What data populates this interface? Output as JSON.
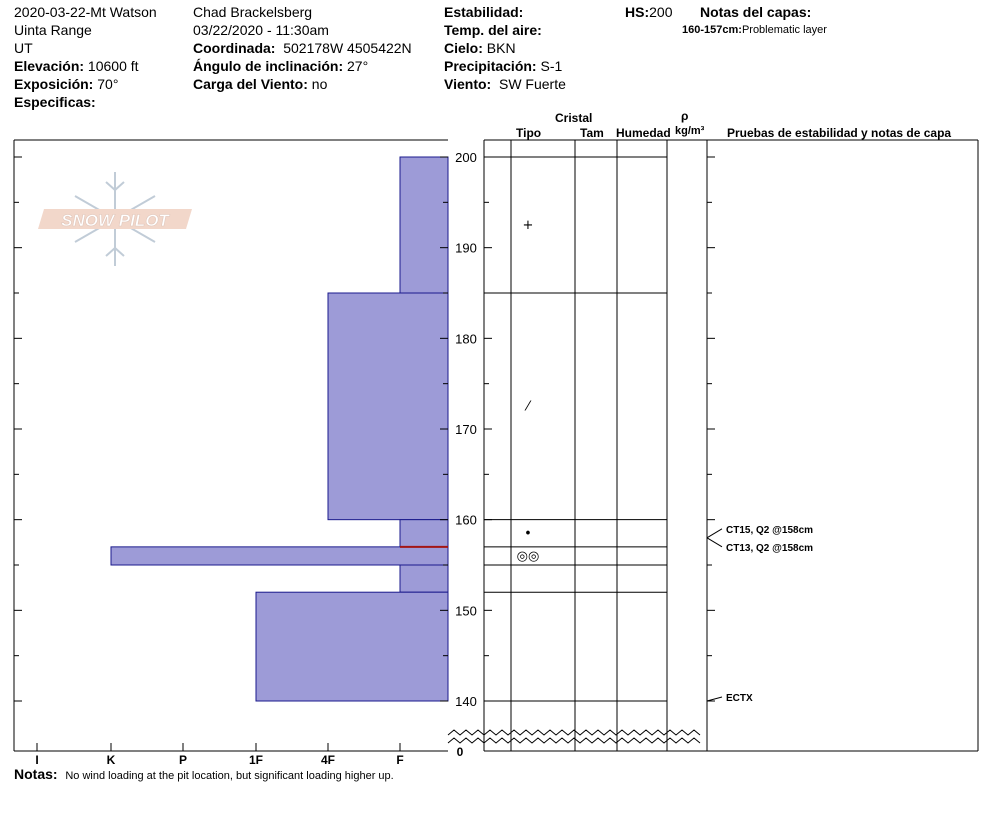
{
  "header": {
    "col1": {
      "pit_name": "2020-03-22-Mt Watson",
      "range": "Uinta Range",
      "state": "UT",
      "elevation_label": "Elevación:",
      "elevation_value": "10600 ft",
      "exposure_label": "Exposición:",
      "exposure_value": "70°",
      "specifics_label": "Especificas:"
    },
    "col2": {
      "observer": "Chad Brackelsberg",
      "datetime": "03/22/2020 - 11:30am",
      "coord_label": "Coordinada:",
      "coord_value": "502178W 4505422N",
      "slope_label": "Ángulo de inclinación:",
      "slope_value": "27°",
      "wind_load_label": "Carga del Viento:",
      "wind_load_value": "no"
    },
    "col3": {
      "stability_label": "Estabilidad:",
      "air_temp_label": "Temp. del aire:",
      "sky_label": "Cielo:",
      "sky_value": "BKN",
      "precip_label": "Precipitación:",
      "precip_value": "S-1",
      "wind_label": "Viento:",
      "wind_value": "SW Fuerte"
    },
    "col4": {
      "hs_label": "HS:",
      "hs_value": "200",
      "layer_notes_label": "Notas del capas:",
      "layer_note_range": "160-157cm:",
      "layer_note_text": "Problematic layer"
    }
  },
  "columns": {
    "crystal": "Cristal",
    "type": "Tipo",
    "size": "Tam",
    "moisture": "Humedad",
    "rho": "ρ",
    "density_unit": "kg/m³",
    "tests_header": "Pruebas de estabilidad y notas de capa"
  },
  "notes": {
    "label": "Notas:",
    "text": "No wind loading at the pit location, but significant loading higher up."
  },
  "logo_text": "SNOW PILOT",
  "colors": {
    "layer_fill": "#9d9bd7",
    "layer_stroke": "#1a1a8c",
    "problem_line": "#a31515"
  },
  "chart_data": {
    "type": "bar",
    "y_unit": "cm",
    "ylim": [
      140,
      200
    ],
    "y_ticks": [
      140,
      150,
      160,
      170,
      180,
      190,
      200
    ],
    "y_zero_label": "0",
    "hardness_scale": [
      "I",
      "K",
      "P",
      "1F",
      "4F",
      "F"
    ],
    "layers": [
      {
        "top": 200,
        "bottom": 185,
        "hardness": "F"
      },
      {
        "top": 185,
        "bottom": 160,
        "hardness": "4F"
      },
      {
        "top": 160,
        "bottom": 157,
        "hardness": "F"
      },
      {
        "top": 157,
        "bottom": 155,
        "hardness": "K"
      },
      {
        "top": 155,
        "bottom": 152,
        "hardness": "F"
      },
      {
        "top": 152,
        "bottom": 140,
        "hardness": "1F"
      }
    ],
    "problem_layer_depth": 157,
    "grain_types": [
      {
        "depth": 192.5,
        "symbol": "+"
      },
      {
        "depth": 172.5,
        "symbol": "/"
      },
      {
        "depth": 158.5,
        "symbol": "•"
      },
      {
        "depth": 156,
        "symbol": "◎◎"
      }
    ],
    "stability_tests": [
      {
        "depth": 158,
        "label": "CT15, Q2 @158cm"
      },
      {
        "depth": 158,
        "label": "CT13, Q2 @158cm"
      },
      {
        "depth": 140,
        "label": "ECTX"
      }
    ]
  }
}
